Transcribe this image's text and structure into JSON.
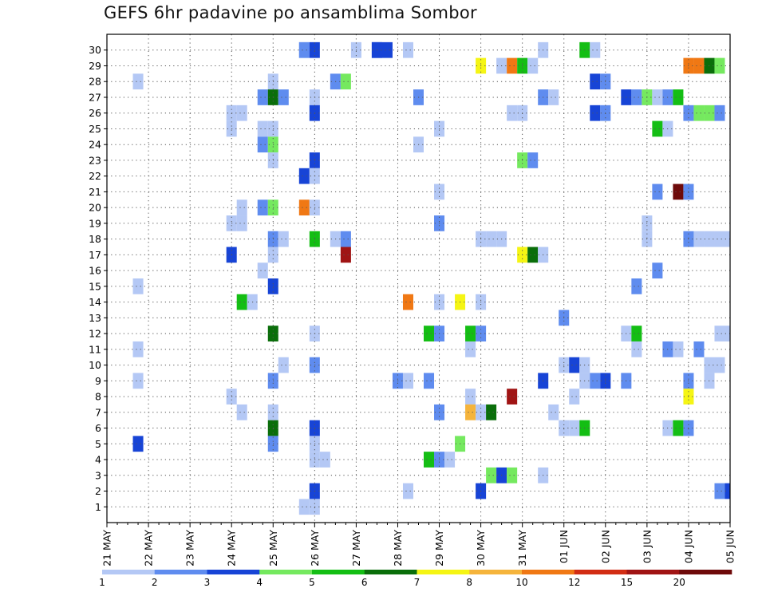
{
  "chart_data": {
    "type": "heatmap",
    "title": "GEFS 6hr padavine po ansamblima Sombor",
    "y_categories": [
      "1",
      "2",
      "3",
      "4",
      "5",
      "6",
      "7",
      "8",
      "9",
      "10",
      "11",
      "12",
      "13",
      "14",
      "15",
      "16",
      "17",
      "18",
      "19",
      "20",
      "21",
      "22",
      "23",
      "24",
      "25",
      "26",
      "27",
      "28",
      "29",
      "30"
    ],
    "x_tick_labels": [
      "21 MAY",
      "22 MAY",
      "23 MAY",
      "24 MAY",
      "25 MAY",
      "26 MAY",
      "27 MAY",
      "28 MAY",
      "29 MAY",
      "30 MAY",
      "31 MAY",
      "01 JUN",
      "02 JUN",
      "03 JUN",
      "04 JUN",
      "05 JUN"
    ],
    "x_step_hours": 6,
    "x_range_steps": [
      0,
      60
    ],
    "grid": true,
    "legend": {
      "position": "bottom",
      "thresholds": [
        "1",
        "2",
        "3",
        "4",
        "5",
        "6",
        "7",
        "8",
        "10",
        "12",
        "15",
        "20"
      ],
      "colors": [
        "#b4c8f5",
        "#5f8cef",
        "#1744d6",
        "#75e95f",
        "#14be14",
        "#0a6e0a",
        "#f5f514",
        "#f5b43c",
        "#f07814",
        "#d22d14",
        "#a01414",
        "#6e0a0a"
      ]
    },
    "cells": [
      [
        19,
        30,
        0
      ],
      [
        19,
        30,
        1
      ],
      [
        20,
        30,
        2
      ],
      [
        24,
        30,
        0
      ],
      [
        26,
        30,
        2
      ],
      [
        26,
        30,
        2
      ],
      [
        27,
        30,
        2
      ],
      [
        29,
        30,
        0
      ],
      [
        42,
        30,
        0
      ],
      [
        46,
        30,
        4
      ],
      [
        47,
        30,
        0
      ],
      [
        36,
        29,
        6
      ],
      [
        38,
        29,
        0
      ],
      [
        39,
        29,
        8
      ],
      [
        40,
        29,
        4
      ],
      [
        41,
        29,
        0
      ],
      [
        56,
        29,
        8
      ],
      [
        57,
        29,
        8
      ],
      [
        58,
        29,
        5
      ],
      [
        59,
        29,
        3
      ],
      [
        3,
        28,
        0
      ],
      [
        16,
        28,
        0
      ],
      [
        22,
        28,
        1
      ],
      [
        23,
        28,
        3
      ],
      [
        47,
        28,
        2
      ],
      [
        48,
        28,
        1
      ],
      [
        15,
        27,
        1
      ],
      [
        16,
        27,
        5
      ],
      [
        17,
        27,
        1
      ],
      [
        20,
        27,
        0
      ],
      [
        30,
        27,
        1
      ],
      [
        42,
        27,
        1
      ],
      [
        43,
        27,
        0
      ],
      [
        50,
        27,
        2
      ],
      [
        51,
        27,
        1
      ],
      [
        52,
        27,
        3
      ],
      [
        53,
        27,
        0
      ],
      [
        54,
        27,
        1
      ],
      [
        55,
        27,
        4
      ],
      [
        12,
        26,
        0
      ],
      [
        13,
        26,
        0
      ],
      [
        20,
        26,
        2
      ],
      [
        39,
        26,
        0
      ],
      [
        40,
        26,
        0
      ],
      [
        47,
        26,
        2
      ],
      [
        48,
        26,
        1
      ],
      [
        56,
        26,
        1
      ],
      [
        57,
        26,
        3
      ],
      [
        58,
        26,
        3
      ],
      [
        59,
        26,
        1
      ],
      [
        12,
        25,
        0
      ],
      [
        15,
        25,
        0
      ],
      [
        16,
        25,
        0
      ],
      [
        32,
        25,
        0
      ],
      [
        53,
        25,
        4
      ],
      [
        54,
        25,
        0
      ],
      [
        15,
        24,
        1
      ],
      [
        16,
        24,
        3
      ],
      [
        30,
        24,
        0
      ],
      [
        16,
        23,
        0
      ],
      [
        20,
        23,
        2
      ],
      [
        40,
        23,
        3
      ],
      [
        41,
        23,
        1
      ],
      [
        19,
        22,
        2
      ],
      [
        20,
        22,
        0
      ],
      [
        32,
        21,
        0
      ],
      [
        53,
        21,
        1
      ],
      [
        55,
        21,
        11
      ],
      [
        56,
        21,
        1
      ],
      [
        13,
        20,
        0
      ],
      [
        15,
        20,
        1
      ],
      [
        16,
        20,
        3
      ],
      [
        19,
        20,
        8
      ],
      [
        20,
        20,
        0
      ],
      [
        12,
        19,
        0
      ],
      [
        13,
        19,
        0
      ],
      [
        32,
        19,
        1
      ],
      [
        52,
        19,
        0
      ],
      [
        16,
        18,
        1
      ],
      [
        17,
        18,
        0
      ],
      [
        20,
        18,
        4
      ],
      [
        22,
        18,
        0
      ],
      [
        23,
        18,
        1
      ],
      [
        36,
        18,
        0
      ],
      [
        37,
        18,
        0
      ],
      [
        38,
        18,
        0
      ],
      [
        52,
        18,
        0
      ],
      [
        56,
        18,
        1
      ],
      [
        57,
        18,
        0
      ],
      [
        58,
        18,
        0
      ],
      [
        59,
        18,
        0
      ],
      [
        60,
        18,
        0
      ],
      [
        12,
        17,
        2
      ],
      [
        16,
        17,
        0
      ],
      [
        23,
        17,
        10
      ],
      [
        40,
        17,
        6
      ],
      [
        41,
        17,
        5
      ],
      [
        42,
        17,
        0
      ],
      [
        15,
        16,
        0
      ],
      [
        53,
        16,
        1
      ],
      [
        3,
        15,
        0
      ],
      [
        16,
        15,
        2
      ],
      [
        51,
        15,
        1
      ],
      [
        13,
        14,
        4
      ],
      [
        14,
        14,
        0
      ],
      [
        29,
        14,
        8
      ],
      [
        32,
        14,
        0
      ],
      [
        34,
        14,
        6
      ],
      [
        36,
        14,
        0
      ],
      [
        44,
        13,
        1
      ],
      [
        16,
        12,
        5
      ],
      [
        20,
        12,
        0
      ],
      [
        31,
        12,
        4
      ],
      [
        32,
        12,
        1
      ],
      [
        35,
        12,
        4
      ],
      [
        36,
        12,
        1
      ],
      [
        50,
        12,
        0
      ],
      [
        51,
        12,
        4
      ],
      [
        59,
        12,
        0
      ],
      [
        60,
        12,
        0
      ],
      [
        3,
        11,
        0
      ],
      [
        35,
        11,
        0
      ],
      [
        51,
        11,
        0
      ],
      [
        54,
        11,
        1
      ],
      [
        55,
        11,
        0
      ],
      [
        57,
        11,
        1
      ],
      [
        17,
        10,
        0
      ],
      [
        20,
        10,
        1
      ],
      [
        44,
        10,
        0
      ],
      [
        45,
        10,
        2
      ],
      [
        46,
        10,
        0
      ],
      [
        58,
        10,
        0
      ],
      [
        59,
        10,
        0
      ],
      [
        3,
        9,
        0
      ],
      [
        16,
        9,
        1
      ],
      [
        28,
        9,
        1
      ],
      [
        29,
        9,
        0
      ],
      [
        31,
        9,
        1
      ],
      [
        42,
        9,
        2
      ],
      [
        46,
        9,
        0
      ],
      [
        47,
        9,
        1
      ],
      [
        48,
        9,
        2
      ],
      [
        50,
        9,
        1
      ],
      [
        56,
        9,
        1
      ],
      [
        58,
        9,
        0
      ],
      [
        12,
        8,
        0
      ],
      [
        35,
        8,
        0
      ],
      [
        39,
        8,
        10
      ],
      [
        45,
        8,
        0
      ],
      [
        56,
        8,
        6
      ],
      [
        13,
        7,
        0
      ],
      [
        16,
        7,
        0
      ],
      [
        32,
        7,
        1
      ],
      [
        35,
        7,
        7
      ],
      [
        36,
        7,
        0
      ],
      [
        37,
        7,
        5
      ],
      [
        43,
        7,
        0
      ],
      [
        16,
        6,
        5
      ],
      [
        20,
        6,
        2
      ],
      [
        44,
        6,
        0
      ],
      [
        45,
        6,
        0
      ],
      [
        46,
        6,
        4
      ],
      [
        54,
        6,
        0
      ],
      [
        55,
        6,
        4
      ],
      [
        56,
        6,
        1
      ],
      [
        3,
        5,
        2
      ],
      [
        16,
        5,
        1
      ],
      [
        20,
        5,
        0
      ],
      [
        34,
        5,
        3
      ],
      [
        20,
        4,
        0
      ],
      [
        21,
        4,
        0
      ],
      [
        31,
        4,
        4
      ],
      [
        32,
        4,
        1
      ],
      [
        33,
        4,
        0
      ],
      [
        37,
        3,
        3
      ],
      [
        38,
        3,
        2
      ],
      [
        39,
        3,
        3
      ],
      [
        42,
        3,
        0
      ],
      [
        20,
        2,
        2
      ],
      [
        29,
        2,
        0
      ],
      [
        36,
        2,
        2
      ],
      [
        59,
        2,
        1
      ],
      [
        60,
        2,
        2
      ],
      [
        19,
        1,
        0
      ],
      [
        20,
        1,
        0
      ]
    ]
  }
}
